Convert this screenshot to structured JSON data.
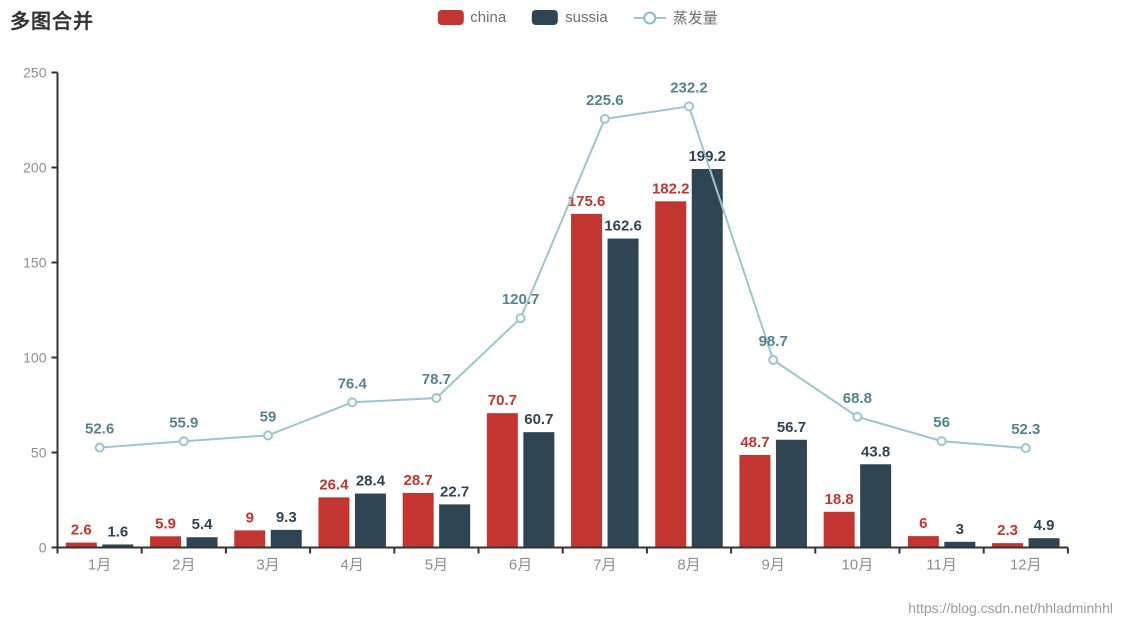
{
  "header": {
    "title": "多图合并"
  },
  "legend": {
    "items": [
      {
        "label": "china",
        "type": "bar",
        "color": "#c23531"
      },
      {
        "label": "sussia",
        "type": "bar",
        "color": "#2f4554"
      },
      {
        "label": "蒸发量",
        "type": "line",
        "color": "#9cc6cf",
        "marker_ring_color": "#8abdc7"
      }
    ]
  },
  "watermark": "https://blog.csdn.net/hhladminhhl",
  "chart_data": {
    "type": "bar",
    "subtype": "grouped-bars-with-line-overlay",
    "title": "多图合并",
    "categories": [
      "1月",
      "2月",
      "3月",
      "4月",
      "5月",
      "6月",
      "7月",
      "8月",
      "9月",
      "10月",
      "11月",
      "12月"
    ],
    "series": [
      {
        "name": "china",
        "type": "bar",
        "color": "#c23531",
        "label_color": "#c23531",
        "values": [
          2.6,
          5.9,
          9,
          26.4,
          28.7,
          70.7,
          175.6,
          182.2,
          48.7,
          18.8,
          6,
          2.3
        ]
      },
      {
        "name": "sussia",
        "type": "bar",
        "color": "#2f4554",
        "label_color": "#2f4554",
        "values": [
          1.6,
          5.4,
          9.3,
          28.4,
          22.7,
          60.7,
          162.6,
          199.2,
          56.7,
          43.8,
          3,
          4.9
        ]
      },
      {
        "name": "蒸发量",
        "type": "line",
        "color": "#9cc6cf",
        "label_color": "#54838f",
        "marker": "empty-circle",
        "values": [
          52.6,
          55.9,
          59,
          76.4,
          78.7,
          120.7,
          225.6,
          232.2,
          98.7,
          68.8,
          56,
          52.3
        ]
      }
    ],
    "xlabel": "",
    "ylabel": "",
    "y_axis": {
      "min": 0,
      "max": 250,
      "interval": 50,
      "ticks": [
        0,
        50,
        100,
        150,
        200,
        250
      ]
    },
    "grid": false,
    "legend_position": "top-center",
    "value_labels": "shown-above-bars-and-points",
    "axis_color": "#333333",
    "axis_label_color": "#8e8e8e"
  }
}
